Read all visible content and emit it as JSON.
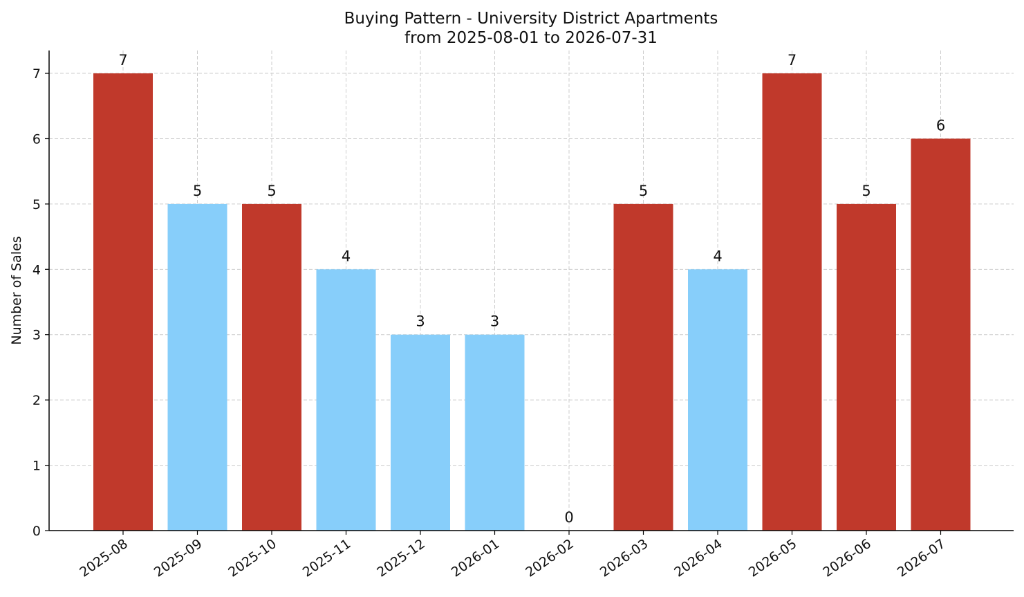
{
  "chart_data": {
    "type": "bar",
    "title_line1": "Buying Pattern - University District Apartments",
    "title_line2": "from 2025-08-01 to 2026-07-31",
    "xlabel": "",
    "ylabel": "Number of Sales",
    "categories": [
      "2025-08",
      "2025-09",
      "2025-10",
      "2025-11",
      "2025-12",
      "2026-01",
      "2026-02",
      "2026-03",
      "2026-04",
      "2026-05",
      "2026-06",
      "2026-07"
    ],
    "values": [
      7,
      5,
      5,
      4,
      3,
      3,
      0,
      5,
      4,
      7,
      5,
      6
    ],
    "bar_colors": [
      "#c0392b",
      "#87cefa",
      "#c0392b",
      "#87cefa",
      "#87cefa",
      "#87cefa",
      "#87cefa",
      "#c0392b",
      "#87cefa",
      "#c0392b",
      "#c0392b",
      "#c0392b"
    ],
    "yticks": [
      0,
      1,
      2,
      3,
      4,
      5,
      6,
      7
    ],
    "ylim": [
      0,
      7.35
    ],
    "grid": true,
    "legend": "none"
  }
}
